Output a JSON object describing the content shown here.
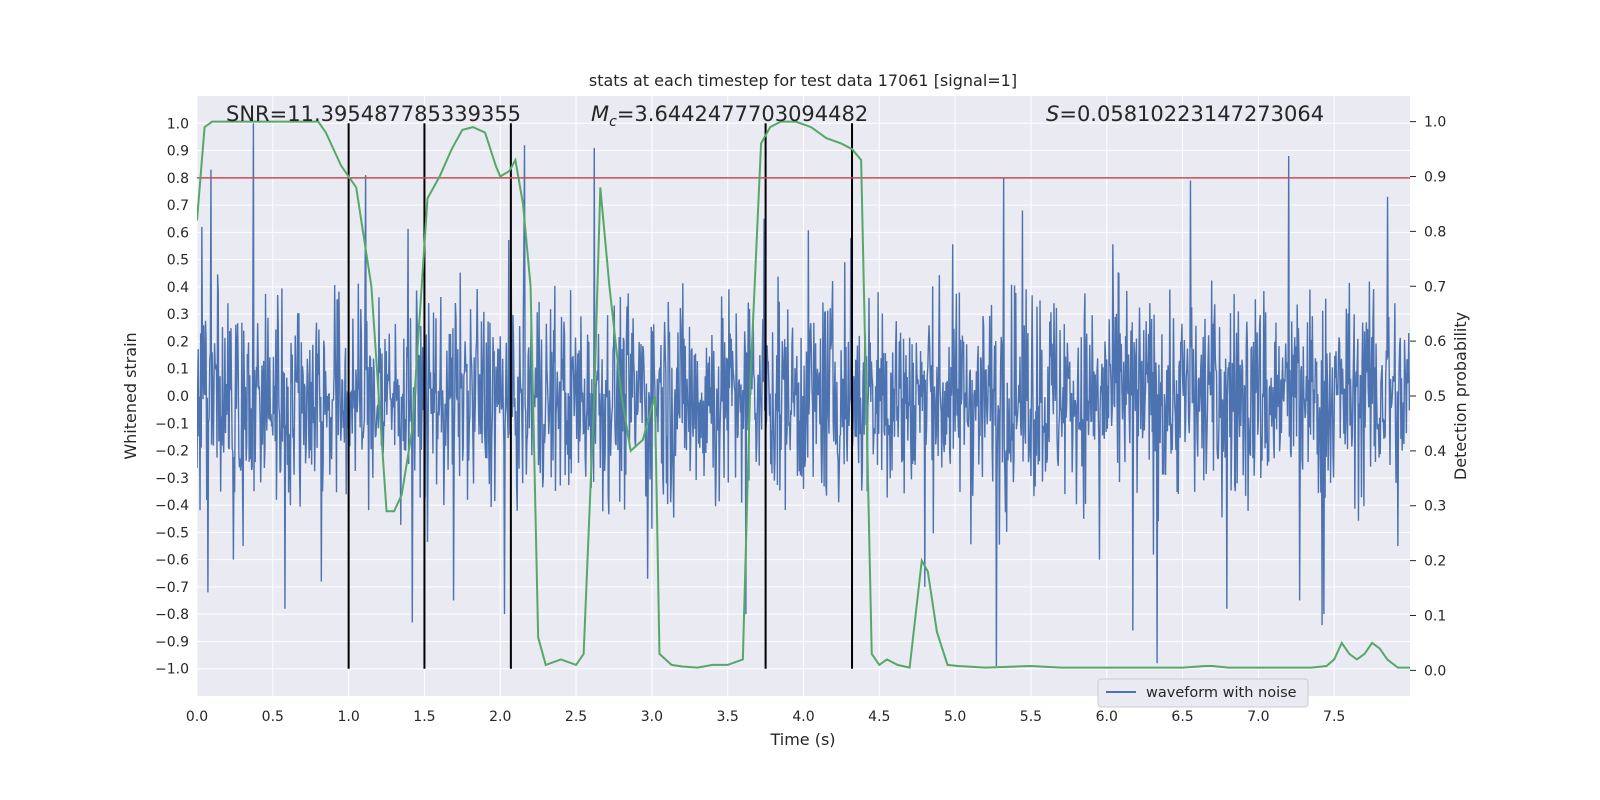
{
  "chart_data": {
    "type": "line",
    "title": "stats at each timestep for test data 17061 [signal=1]",
    "xlabel": "Time (s)",
    "ylabel": "Whitened strain",
    "y2label": "Detection probability",
    "xlim": [
      0.0,
      8.0
    ],
    "ylim": [
      -1.1,
      1.1
    ],
    "y2lim": [
      -0.0467,
      1.0467
    ],
    "grid": true,
    "x_ticks": [
      "0.0",
      "0.5",
      "1.0",
      "1.5",
      "2.0",
      "2.5",
      "3.0",
      "3.5",
      "4.0",
      "4.5",
      "5.0",
      "5.5",
      "6.0",
      "6.5",
      "7.0",
      "7.5"
    ],
    "y_ticks": [
      "1.0",
      "0.9",
      "0.8",
      "0.7",
      "0.6",
      "0.5",
      "0.4",
      "0.3",
      "0.2",
      "0.1",
      "0.0",
      "−0.1",
      "−0.2",
      "−0.3",
      "−0.4",
      "−0.5",
      "−0.6",
      "−0.7",
      "−0.8",
      "−0.9",
      "−1.0"
    ],
    "y2_ticks": [
      "1.0",
      "0.9",
      "0.8",
      "0.7",
      "0.6",
      "0.5",
      "0.4",
      "0.3",
      "0.2",
      "0.1",
      "0.0"
    ],
    "annotations": {
      "snr": "SNR=11.395487785339355",
      "mc_symbol": "M",
      "mc_sub": "c",
      "mc_value": "=3.6442477703094482",
      "s_symbol": "S",
      "s_value": "=0.05810223147273064"
    },
    "threshold": {
      "name": "threshold",
      "value": 0.8,
      "axis": "left",
      "color": "#c44e52"
    },
    "vertical_markers": {
      "x": [
        1.0,
        1.5,
        2.07,
        3.75,
        4.32
      ],
      "y_from": -1.0,
      "y_to": 1.0,
      "color": "#000000"
    },
    "series": [
      {
        "name": "waveform with noise",
        "color": "#4c72b0",
        "axis": "left",
        "sample_rate": 250,
        "envelope_typical": 0.42,
        "spikes": [
          [
            0.03,
            0.62
          ],
          [
            0.07,
            -0.72
          ],
          [
            0.09,
            0.83
          ],
          [
            0.24,
            -0.6
          ],
          [
            0.37,
            1.0
          ],
          [
            0.58,
            -0.78
          ],
          [
            0.82,
            -0.68
          ],
          [
            1.11,
            0.81
          ],
          [
            1.42,
            -0.83
          ],
          [
            1.69,
            -0.75
          ],
          [
            2.03,
            -0.8
          ],
          [
            2.16,
            0.92
          ],
          [
            2.62,
            0.91
          ],
          [
            2.97,
            -0.67
          ],
          [
            3.62,
            -0.8
          ],
          [
            3.74,
            0.65
          ],
          [
            4.31,
            0.58
          ],
          [
            4.8,
            -0.7
          ],
          [
            5.27,
            -0.99
          ],
          [
            5.32,
            0.8
          ],
          [
            5.95,
            -0.6
          ],
          [
            6.17,
            -0.86
          ],
          [
            6.33,
            -0.98
          ],
          [
            6.55,
            0.79
          ],
          [
            6.79,
            -0.78
          ],
          [
            7.2,
            0.88
          ],
          [
            7.27,
            -0.75
          ],
          [
            7.42,
            -0.84
          ],
          [
            7.43,
            -0.8
          ],
          [
            7.85,
            0.73
          ],
          [
            7.92,
            -0.55
          ]
        ]
      },
      {
        "name": "detection probability",
        "color": "#55a868",
        "axis": "right",
        "x": [
          0.0,
          0.05,
          0.1,
          0.2,
          0.4,
          0.6,
          0.8,
          0.85,
          0.95,
          1.05,
          1.15,
          1.25,
          1.3,
          1.35,
          1.42,
          1.52,
          1.6,
          1.68,
          1.75,
          1.82,
          1.9,
          1.97,
          2.0,
          2.06,
          2.1,
          2.15,
          2.2,
          2.25,
          2.3,
          2.4,
          2.5,
          2.55,
          2.62,
          2.66,
          2.72,
          2.8,
          2.86,
          2.94,
          3.02,
          3.05,
          3.13,
          3.2,
          3.3,
          3.4,
          3.5,
          3.6,
          3.65,
          3.72,
          3.78,
          3.85,
          3.95,
          4.05,
          4.15,
          4.25,
          4.32,
          4.38,
          4.45,
          4.5,
          4.55,
          4.62,
          4.7,
          4.78,
          4.82,
          4.88,
          4.95,
          5.02,
          5.2,
          5.5,
          5.7,
          6.0,
          6.3,
          6.5,
          6.65,
          6.7,
          6.8,
          7.0,
          7.2,
          7.3,
          7.35,
          7.45,
          7.5,
          7.55,
          7.6,
          7.65,
          7.7,
          7.75,
          7.8,
          7.85,
          7.92,
          8.0
        ],
        "y": [
          0.82,
          0.99,
          1.0,
          1.0,
          1.0,
          1.0,
          1.0,
          0.98,
          0.92,
          0.88,
          0.7,
          0.29,
          0.29,
          0.32,
          0.44,
          0.86,
          0.9,
          0.95,
          0.985,
          0.99,
          0.98,
          0.92,
          0.9,
          0.91,
          0.93,
          0.85,
          0.7,
          0.06,
          0.01,
          0.02,
          0.01,
          0.03,
          0.5,
          0.88,
          0.7,
          0.5,
          0.4,
          0.42,
          0.5,
          0.03,
          0.01,
          0.007,
          0.005,
          0.01,
          0.01,
          0.02,
          0.53,
          0.96,
          0.99,
          1.0,
          1.0,
          0.99,
          0.97,
          0.96,
          0.95,
          0.93,
          0.03,
          0.01,
          0.02,
          0.01,
          0.005,
          0.2,
          0.18,
          0.07,
          0.01,
          0.008,
          0.005,
          0.008,
          0.005,
          0.005,
          0.005,
          0.005,
          0.008,
          0.008,
          0.005,
          0.005,
          0.005,
          0.005,
          0.005,
          0.008,
          0.02,
          0.05,
          0.03,
          0.02,
          0.03,
          0.05,
          0.04,
          0.02,
          0.005,
          0.005
        ]
      }
    ],
    "legend": {
      "location": "lower-right",
      "entries": [
        "waveform with noise"
      ]
    }
  }
}
